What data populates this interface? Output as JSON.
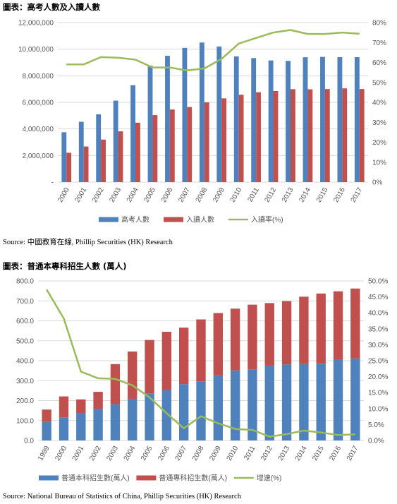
{
  "chart1": {
    "caption": "圖表：高考人數及入讀人數",
    "source": "Source:  中國教育在線, Phillip Securities (HK) Research",
    "chart_data": {
      "type": "bar",
      "title": "",
      "categories": [
        "2000",
        "2001",
        "2002",
        "2003",
        "2004",
        "2005",
        "2006",
        "2007",
        "2008",
        "2009",
        "2010",
        "2011",
        "2012",
        "2013",
        "2014",
        "2015",
        "2016",
        "2017"
      ],
      "y_left_ticks": [
        "-",
        "2,000,000",
        "4,000,000",
        "6,000,000",
        "8,000,000",
        "10,000,000",
        "12,000,000"
      ],
      "y_right_ticks": [
        "0%",
        "10%",
        "20%",
        "30%",
        "40%",
        "50%",
        "60%",
        "70%",
        "80%"
      ],
      "ylim_left": [
        0,
        12000000
      ],
      "ylim_right": [
        0,
        80
      ],
      "grid": true,
      "legend_position": "bottom",
      "series": [
        {
          "name": "高考人數",
          "type": "bar",
          "axis": "left",
          "color": "#4F81BD",
          "values": [
            3750000,
            4540000,
            5100000,
            6130000,
            7290000,
            8770000,
            9500000,
            10100000,
            10500000,
            10200000,
            9460000,
            9330000,
            9150000,
            9120000,
            9390000,
            9420000,
            9400000,
            9400000
          ]
        },
        {
          "name": "入讀人數",
          "type": "bar",
          "axis": "left",
          "color": "#C0504D",
          "values": [
            2210000,
            2680000,
            3200000,
            3820000,
            4470000,
            5040000,
            5460000,
            5650000,
            6000000,
            6300000,
            6570000,
            6760000,
            6850000,
            6990000,
            6980000,
            7000000,
            7050000,
            7000000
          ]
        },
        {
          "name": "入讀率(%)",
          "type": "line",
          "axis": "right",
          "color": "#9BBB59",
          "values": [
            59,
            59,
            62.7,
            62.4,
            61.4,
            57.5,
            57.5,
            56,
            57,
            61.8,
            69.5,
            72.3,
            75,
            76.3,
            74.3,
            74.3,
            75,
            74.4
          ]
        }
      ]
    }
  },
  "chart2": {
    "caption": "圖表：普通本專科招生人數 (萬人)",
    "source": "Source: National Bureau of Statistics of China, Phillip Securities (HK) Research",
    "chart_data": {
      "type": "bar",
      "stacked": true,
      "title": "",
      "categories": [
        "1999",
        "2000",
        "2001",
        "2002",
        "2003",
        "2004",
        "2005",
        "2006",
        "2007",
        "2008",
        "2009",
        "2010",
        "2011",
        "2012",
        "2013",
        "2014",
        "2015",
        "2016",
        "2017"
      ],
      "y_left_ticks": [
        "0.0",
        "100.0",
        "200.0",
        "300.0",
        "400.0",
        "500.0",
        "600.0",
        "700.0",
        "800.0"
      ],
      "y_right_ticks": [
        "0.0%",
        "5.0%",
        "10.0%",
        "15.0%",
        "20.0%",
        "25.0%",
        "30.0%",
        "35.0%",
        "40.0%",
        "45.0%",
        "50.0%"
      ],
      "ylim_left": [
        0,
        800
      ],
      "ylim_right": [
        0,
        50
      ],
      "grid": true,
      "legend_position": "bottom",
      "series": [
        {
          "name": "普通本科招生數(萬人)",
          "type": "bar",
          "axis": "left",
          "color": "#4F81BD",
          "values": [
            93,
            116,
            138,
            159,
            182,
            209,
            236,
            253,
            282,
            297,
            326,
            351,
            357,
            374,
            381,
            383,
            389,
            405,
            411
          ]
        },
        {
          "name": "普通專科招生數(萬人)",
          "type": "bar",
          "axis": "left",
          "color": "#C0504D",
          "values": [
            62,
            105,
            68,
            85,
            201,
            237,
            268,
            292,
            284,
            310,
            313,
            310,
            324,
            315,
            318,
            338,
            348,
            343,
            351
          ]
        },
        {
          "name": "增速(%)",
          "type": "line",
          "axis": "right",
          "color": "#9BBB59",
          "values": [
            47.3,
            38.2,
            21.6,
            19.5,
            19.3,
            17.3,
            13.5,
            8.5,
            3.8,
            7.6,
            5.4,
            3.6,
            3.3,
            1.2,
            2.0,
            3.1,
            2.5,
            1.7,
            1.9
          ]
        }
      ]
    }
  }
}
